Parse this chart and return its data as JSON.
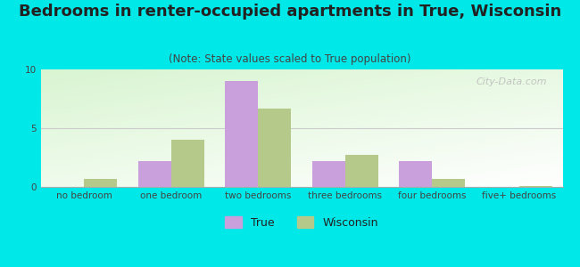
{
  "categories": [
    "no bedroom",
    "one bedroom",
    "two bedrooms",
    "three bedrooms",
    "four bedrooms",
    "five+ bedrooms"
  ],
  "true_values": [
    0,
    2.2,
    9.0,
    2.2,
    2.2,
    0
  ],
  "wisconsin_values": [
    0.7,
    4.0,
    6.7,
    2.7,
    0.7,
    0.1
  ],
  "true_color": "#c9a0dc",
  "wisconsin_color": "#b5c98a",
  "title": "Bedrooms in renter-occupied apartments in True, Wisconsin",
  "subtitle": "(Note: State values scaled to True population)",
  "ylim": [
    0,
    10
  ],
  "yticks": [
    0,
    5,
    10
  ],
  "bar_width": 0.38,
  "figure_bg": "#00e8e8",
  "title_fontsize": 13,
  "subtitle_fontsize": 8.5,
  "tick_fontsize": 7.5,
  "legend_fontsize": 9,
  "watermark_text": "City-Data.com",
  "watermark_color": "#bbbbbb",
  "title_color": "#222222",
  "subtitle_color": "#444444",
  "tick_color": "#444444",
  "grid_color": "#cccccc",
  "spine_color": "#aaaaaa"
}
